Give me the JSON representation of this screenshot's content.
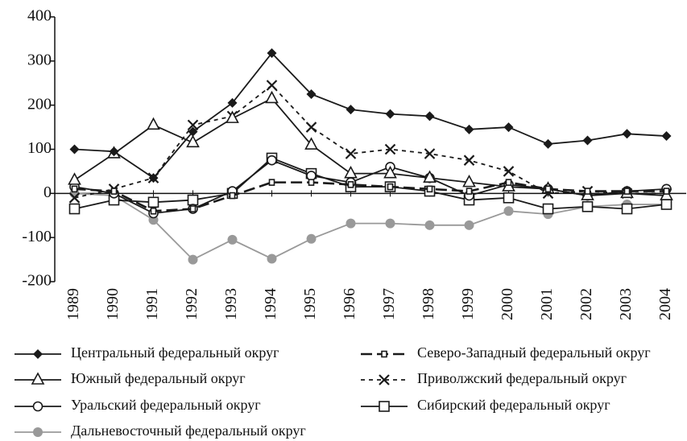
{
  "chart_data": {
    "type": "line",
    "categories": [
      "1989",
      "1990",
      "1991",
      "1992",
      "1993",
      "1994",
      "1995",
      "1996",
      "1997",
      "1998",
      "1999",
      "2000",
      "2001",
      "2002",
      "2003",
      "2004"
    ],
    "ylim": [
      -200,
      400
    ],
    "yticks": [
      -200,
      -100,
      0,
      100,
      200,
      300,
      400
    ],
    "series": [
      {
        "name": "Центральный федеральный округ",
        "color": "#1a1a1a",
        "marker": "diamond",
        "dash": "solid",
        "values": [
          100,
          95,
          35,
          140,
          205,
          318,
          225,
          190,
          180,
          175,
          145,
          150,
          112,
          120,
          135,
          130
        ]
      },
      {
        "name": "Северо-Западный федеральный округ",
        "color": "#1a1a1a",
        "marker": "small-square",
        "dash": "long",
        "values": [
          10,
          5,
          -40,
          -35,
          -5,
          25,
          25,
          20,
          15,
          10,
          5,
          25,
          10,
          5,
          5,
          5
        ]
      },
      {
        "name": "Южный федеральный округ",
        "color": "#1a1a1a",
        "marker": "triangle",
        "dash": "solid",
        "values": [
          30,
          90,
          155,
          115,
          170,
          215,
          110,
          45,
          45,
          35,
          25,
          15,
          10,
          -5,
          0,
          -5
        ]
      },
      {
        "name": "Приволжский федеральный округ",
        "color": "#1a1a1a",
        "marker": "cross",
        "dash": "short",
        "values": [
          -10,
          10,
          35,
          155,
          175,
          245,
          150,
          90,
          100,
          90,
          75,
          50,
          0,
          5,
          0,
          0
        ]
      },
      {
        "name": "Уральский федеральный округ",
        "color": "#1a1a1a",
        "marker": "circle",
        "dash": "solid",
        "values": [
          15,
          0,
          -45,
          -35,
          5,
          75,
          40,
          25,
          60,
          35,
          -5,
          20,
          10,
          -5,
          5,
          10
        ]
      },
      {
        "name": "Сибирский федеральный округ",
        "color": "#1a1a1a",
        "marker": "square",
        "dash": "solid",
        "values": [
          -35,
          -15,
          -20,
          -15,
          0,
          80,
          45,
          15,
          15,
          5,
          -15,
          -10,
          -35,
          -30,
          -35,
          -25
        ]
      },
      {
        "name": "Дальневосточный федеральный округ",
        "color": "#999999",
        "marker": "dot",
        "dash": "solid",
        "values": [
          0,
          -5,
          -60,
          -150,
          -105,
          -148,
          -103,
          -68,
          -68,
          -72,
          -72,
          -40,
          -47,
          -30,
          -25,
          -25
        ]
      }
    ]
  }
}
